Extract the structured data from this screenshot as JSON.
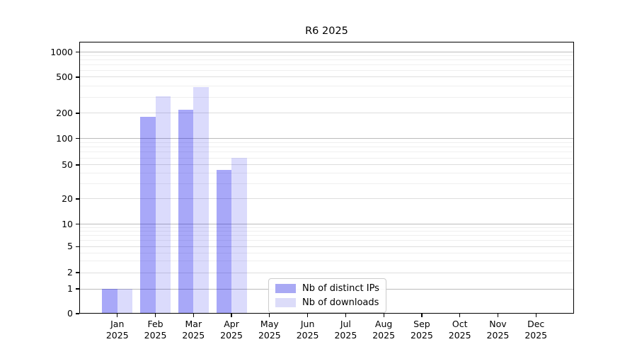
{
  "title": "R6 2025",
  "colors": {
    "axis": "#000000",
    "grid_power10": "#bcbcbc",
    "grid_tick": "#dedede",
    "grid_minor": "#efefef",
    "ips_bar": "rgba(0,0,235,0.34)",
    "ips_legend_swatch": "#a9a9f4",
    "downloads_bar": "rgba(0,0,235,0.14)",
    "downloads_legend_swatch": "#dcdcf9"
  },
  "chart_data": {
    "type": "bar",
    "title": "R6 2025",
    "xlabel": "",
    "ylabel": "",
    "yscale": "symlog",
    "ylim": [
      0,
      1000
    ],
    "grid": true,
    "legend_position": "lower center-left inside plot",
    "categories": [
      "Jan 2025",
      "Feb 2025",
      "Mar 2025",
      "Apr 2025",
      "May 2025",
      "Jun 2025",
      "Jul 2025",
      "Aug 2025",
      "Sep 2025",
      "Oct 2025",
      "Nov 2025",
      "Dec 2025"
    ],
    "series": [
      {
        "name": "Nb of distinct IPs",
        "color": "#a9a9f4",
        "values": [
          1,
          180,
          220,
          44,
          0,
          0,
          0,
          0,
          0,
          0,
          0,
          0
        ]
      },
      {
        "name": "Nb of downloads",
        "color": "#dcdcf9",
        "values": [
          1,
          310,
          390,
          60,
          0,
          0,
          0,
          0,
          0,
          0,
          0,
          0
        ]
      }
    ],
    "yticks": [
      {
        "label": "0",
        "value": 0,
        "f": 1.0
      },
      {
        "label": "1",
        "value": 1,
        "f": 0.909
      },
      {
        "label": "2",
        "value": 2,
        "f": 0.849
      },
      {
        "label": "5",
        "value": 5,
        "f": 0.753
      },
      {
        "label": "10",
        "value": 10,
        "f": 0.671
      },
      {
        "label": "20",
        "value": 20,
        "f": 0.578
      },
      {
        "label": "50",
        "value": 50,
        "f": 0.453
      },
      {
        "label": "100",
        "value": 100,
        "f": 0.356
      },
      {
        "label": "200",
        "value": 200,
        "f": 0.263
      },
      {
        "label": "500",
        "value": 500,
        "f": 0.13
      },
      {
        "label": "1000",
        "value": 1000,
        "f": 0.038
      }
    ],
    "minor_grid_values": [
      3,
      4,
      6,
      7,
      8,
      9,
      30,
      40,
      60,
      70,
      80,
      90,
      300,
      400,
      600,
      700,
      800,
      900
    ]
  }
}
